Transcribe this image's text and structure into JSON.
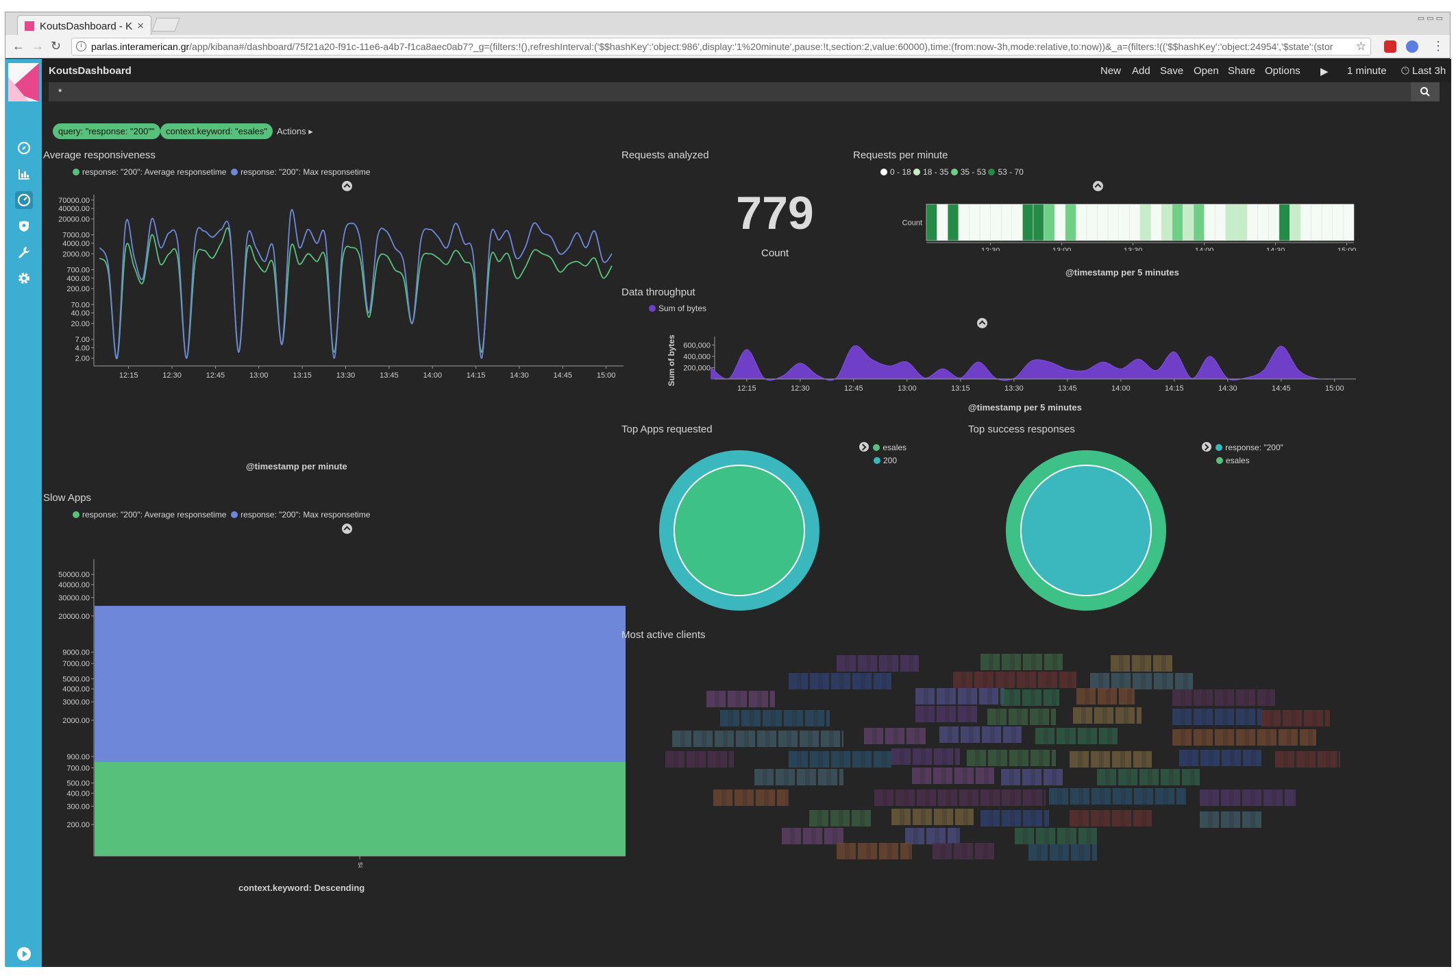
{
  "browser": {
    "tab_title": "KoutsDashboard - K",
    "url_host": "parlas.interamerican.gr",
    "url_rest": "/app/kibana#/dashboard/75f21a20-f91c-11e6-a4b7-f1ca8aec0ab7?_g=(filters:!(),refreshInterval:('$$hashKey':'object:986',display:'1%20minute',pause:!t,section:2,value:60000),time:(from:now-3h,mode:relative,to:now))&_a=(filters:!(('$$hashKey':'object:24954','$state':(stor"
  },
  "kibana": {
    "dashboard_title": "KoutsDashboard",
    "menu": [
      "New",
      "Add",
      "Save",
      "Open",
      "Share",
      "Options"
    ],
    "refresh_interval": "1 minute",
    "time_range": "Last 3h",
    "query": "*",
    "filters": [
      "query: \"response: \"200\"\"",
      "context.keyword: \"esales\""
    ],
    "actions_label": "Actions"
  },
  "colors": {
    "sidebar": "#3caed2",
    "green": "#57c17b",
    "blue": "#6f87d8",
    "purple": "#6f3fc7",
    "teal": "#3bb7be"
  },
  "panels": {
    "avg_resp": {
      "title": "Average responsiveness",
      "legend": [
        "response: \"200\": Average responsetime",
        "response: \"200\": Max responsetime"
      ],
      "xlabel": "@timestamp per minute",
      "yticks": [
        "70000.00",
        "40000.00",
        "20000.00",
        "7000.00",
        "4000.00",
        "2000.00",
        "700.00",
        "400.00",
        "200.00",
        "70.00",
        "40.00",
        "20.00",
        "7.00",
        "4.00",
        "2.00"
      ],
      "xticks": [
        "12:15",
        "12:30",
        "12:45",
        "13:00",
        "13:15",
        "13:30",
        "13:45",
        "14:00",
        "14:15",
        "14:30",
        "14:45",
        "15:00"
      ]
    },
    "requests": {
      "title": "Requests analyzed",
      "value": "779",
      "label": "Count"
    },
    "rpm": {
      "title": "Requests per minute",
      "legend": [
        "0 - 18",
        "18 - 35",
        "35 - 53",
        "53 - 70"
      ],
      "row_label": "Count",
      "xlabel": "@timestamp per 5 minutes",
      "xticks": [
        "12:30",
        "13:00",
        "13:30",
        "14:00",
        "14:30",
        "15:00"
      ]
    },
    "throughput": {
      "title": "Data throughput",
      "legend": [
        "Sum of bytes"
      ],
      "ylabel": "Sum of bytes",
      "yticks": [
        "600,000",
        "400,000",
        "200,000"
      ],
      "xticks": [
        "12:15",
        "12:30",
        "12:45",
        "13:00",
        "13:15",
        "13:30",
        "13:45",
        "14:00",
        "14:15",
        "14:30",
        "14:45",
        "15:00"
      ],
      "xlabel": "@timestamp per 5 minutes"
    },
    "top_apps": {
      "title": "Top Apps requested",
      "legend": [
        "esales",
        "200"
      ]
    },
    "top_success": {
      "title": "Top success responses",
      "legend": [
        "response: \"200\"",
        "esales"
      ]
    },
    "slow_apps": {
      "title": "Slow Apps",
      "legend": [
        "response: \"200\": Average responsetime",
        "response: \"200\": Max responsetime"
      ],
      "yticks": [
        "50000.00",
        "40000.00",
        "30000.00",
        "20000.00",
        "9000.00",
        "7000.00",
        "5000.00",
        "4000.00",
        "3000.00",
        "2000.00",
        "900.00",
        "700.00",
        "500.00",
        "400.00",
        "300.00",
        "200.00"
      ],
      "category": "esales",
      "xlabel": "context.keyword: Descending"
    },
    "clients": {
      "title": "Most active clients"
    }
  },
  "chart_data": [
    {
      "type": "line",
      "title": "Average responsiveness",
      "xlabel": "@timestamp per minute",
      "yscale": "log",
      "ylim": [
        1,
        100000
      ],
      "x": [
        "12:05",
        "12:08",
        "12:11",
        "12:14",
        "12:17",
        "12:20",
        "12:23",
        "12:26",
        "12:29",
        "12:32",
        "12:35",
        "12:38",
        "12:41",
        "12:44",
        "12:47",
        "12:50",
        "12:53",
        "12:56",
        "12:59",
        "13:02",
        "13:05",
        "13:08",
        "13:11",
        "13:14",
        "13:17",
        "13:20",
        "13:23",
        "13:26",
        "13:29",
        "13:32",
        "13:35",
        "13:38",
        "13:41",
        "13:44",
        "13:47",
        "13:50",
        "13:53",
        "13:56",
        "13:59",
        "14:02",
        "14:05",
        "14:08",
        "14:11",
        "14:14",
        "14:17",
        "14:20",
        "14:23",
        "14:26",
        "14:29",
        "14:32",
        "14:35",
        "14:38",
        "14:41",
        "14:44",
        "14:47",
        "14:50",
        "14:53",
        "14:56",
        "14:59",
        "15:02"
      ],
      "series": [
        {
          "name": "response: \"200\": Average responsetime",
          "values": [
            1500,
            600,
            2,
            3000,
            800,
            300,
            7000,
            1000,
            2000,
            1500,
            2,
            1200,
            2500,
            1500,
            4000,
            7000,
            3,
            2500,
            1200,
            600,
            1000,
            5,
            3000,
            1000,
            2000,
            1200,
            1500,
            3,
            1500,
            3000,
            1500,
            30,
            1200,
            1800,
            700,
            400,
            20,
            1200,
            2000,
            1500,
            1000,
            2500,
            1200,
            600,
            3,
            1500,
            1200,
            2000,
            400,
            800,
            2500,
            2000,
            1500,
            600,
            1000,
            1200,
            900,
            1500,
            400,
            900
          ]
        },
        {
          "name": "response: \"200\": Max responsetime",
          "values": [
            3000,
            900,
            2,
            15000,
            1500,
            400,
            20000,
            3000,
            8000,
            4000,
            2,
            5000,
            9000,
            6000,
            10000,
            9000,
            3,
            6000,
            3000,
            1200,
            3000,
            5,
            30000,
            3000,
            10000,
            4000,
            6000,
            2,
            4000,
            15000,
            5000,
            40,
            6000,
            9000,
            3000,
            1200,
            20,
            5000,
            10000,
            6000,
            3000,
            15000,
            4000,
            2000,
            2,
            6000,
            5000,
            9000,
            1500,
            3000,
            15000,
            8000,
            6000,
            2000,
            3000,
            8000,
            3000,
            9000,
            1200,
            2000
          ]
        }
      ]
    },
    {
      "type": "heatmap",
      "title": "Requests per minute",
      "xlabel": "@timestamp per 5 minutes",
      "legend": [
        "0 - 18",
        "18 - 35",
        "35 - 53",
        "53 - 70"
      ],
      "values": [
        65,
        5,
        70,
        5,
        5,
        5,
        5,
        5,
        5,
        60,
        55,
        50,
        5,
        45,
        5,
        5,
        5,
        5,
        5,
        5,
        30,
        5,
        20,
        40,
        20,
        48,
        5,
        5,
        25,
        30,
        5,
        5,
        5,
        55,
        30,
        5,
        5,
        5,
        5,
        5
      ]
    },
    {
      "type": "area",
      "title": "Data throughput",
      "ylabel": "Sum of bytes",
      "xlabel": "@timestamp per 5 minutes",
      "legend": [
        "Sum of bytes"
      ],
      "x": [
        "12:05",
        "12:10",
        "12:15",
        "12:20",
        "12:25",
        "12:30",
        "12:35",
        "12:40",
        "12:45",
        "12:50",
        "12:55",
        "13:00",
        "13:05",
        "13:10",
        "13:15",
        "13:20",
        "13:25",
        "13:30",
        "13:35",
        "13:40",
        "13:45",
        "13:50",
        "13:55",
        "14:00",
        "14:05",
        "14:10",
        "14:15",
        "14:20",
        "14:25",
        "14:30",
        "14:35",
        "14:40",
        "14:45",
        "14:50",
        "14:55",
        "15:00"
      ],
      "values": [
        200000,
        10000,
        520000,
        10000,
        50000,
        280000,
        60000,
        10000,
        580000,
        350000,
        230000,
        300000,
        20000,
        180000,
        20000,
        300000,
        10000,
        10000,
        320000,
        300000,
        170000,
        150000,
        300000,
        180000,
        350000,
        150000,
        480000,
        10000,
        400000,
        10000,
        20000,
        150000,
        580000,
        150000,
        10000,
        0
      ]
    },
    {
      "type": "pie",
      "title": "Top Apps requested",
      "series": [
        {
          "name": "esales",
          "values": [
            779
          ]
        },
        {
          "name": "200",
          "values": [
            779
          ]
        }
      ]
    },
    {
      "type": "pie",
      "title": "Top success responses",
      "series": [
        {
          "name": "response: \"200\"",
          "values": [
            779
          ]
        },
        {
          "name": "esales",
          "values": [
            779
          ]
        }
      ]
    },
    {
      "type": "bar",
      "title": "Slow Apps",
      "yscale": "log",
      "xlabel": "context.keyword: Descending",
      "categories": [
        "esales"
      ],
      "series": [
        {
          "name": "response: \"200\": Average responsetime",
          "values": [
            800
          ]
        },
        {
          "name": "response: \"200\": Max responsetime",
          "values": [
            25000
          ]
        }
      ]
    }
  ]
}
